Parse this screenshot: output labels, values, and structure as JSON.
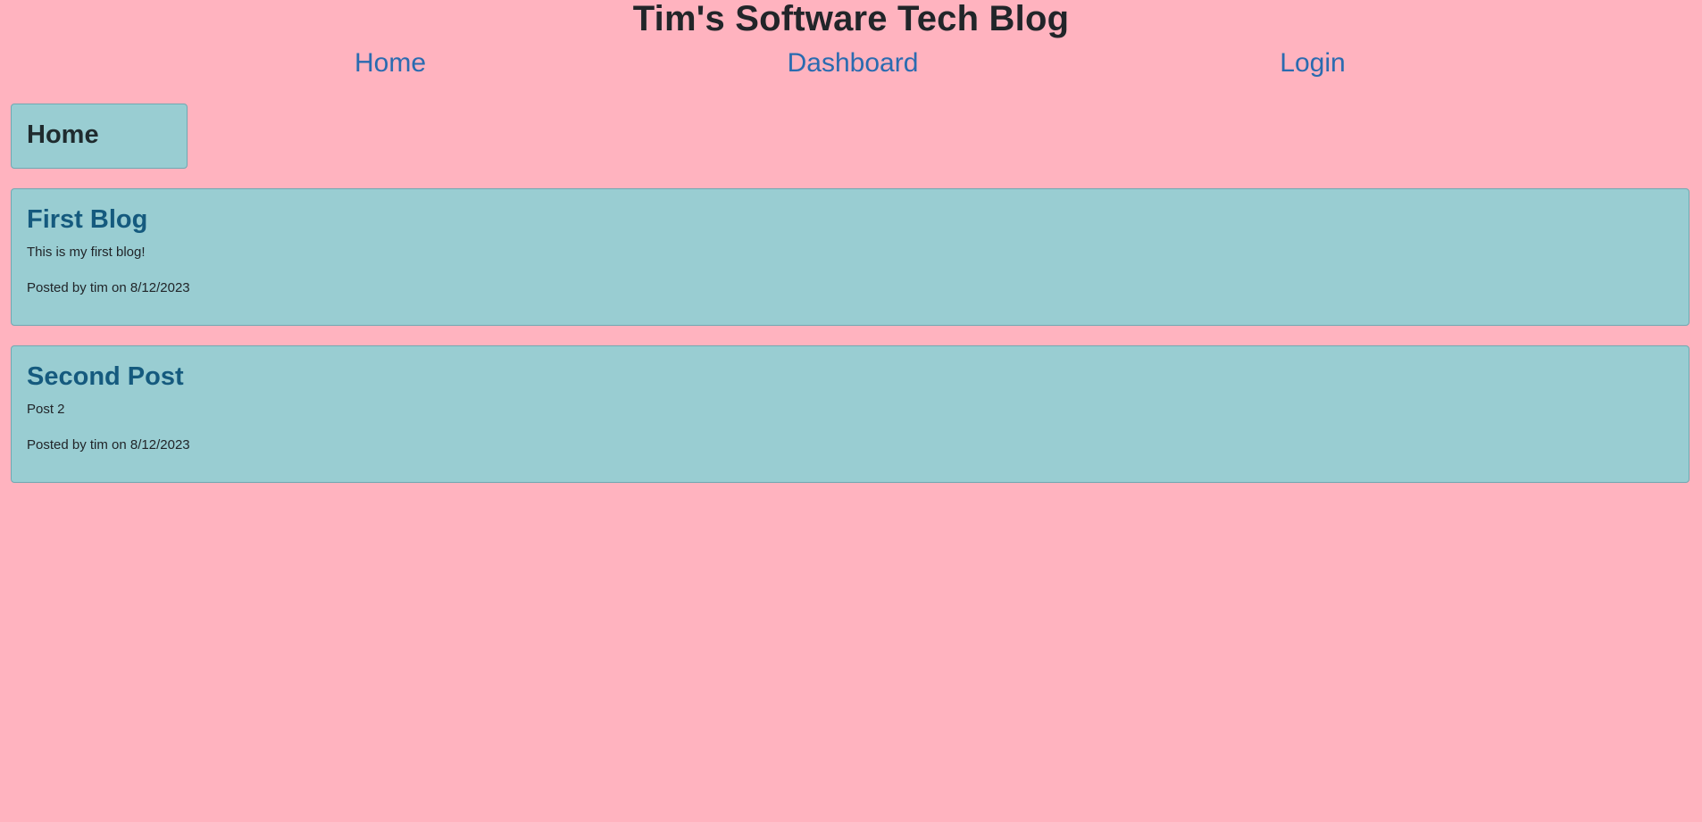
{
  "site": {
    "title": "Tim's Software Tech Blog"
  },
  "nav": {
    "home": "Home",
    "dashboard": "Dashboard",
    "login": "Login"
  },
  "page": {
    "label": "Home"
  },
  "posts": [
    {
      "title": "First Blog",
      "body": "This is my first blog!",
      "meta": "Posted by tim on 8/12/2023"
    },
    {
      "title": "Second Post",
      "body": "Post 2",
      "meta": "Posted by tim on 8/12/2023"
    }
  ],
  "colors": {
    "background": "#ffb3bf",
    "card": "#99cdd2",
    "link": "#2a6bb0",
    "post_title": "#155a7e"
  }
}
